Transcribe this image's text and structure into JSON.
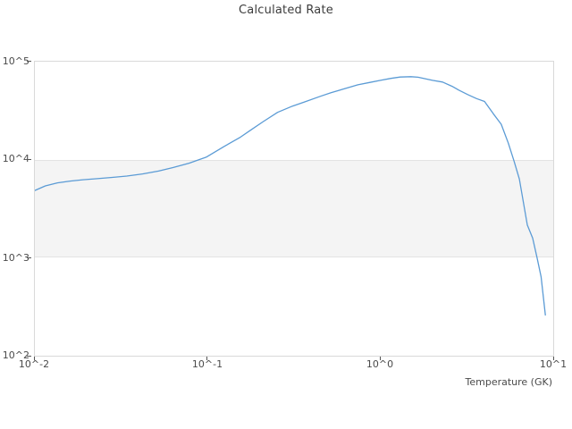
{
  "page": {
    "title": "Calculated Rate"
  },
  "axes": {
    "x_label": "Temperature (GK)",
    "x_ticks": [
      "10^-2",
      "10^-1",
      "10^0",
      "10^1"
    ],
    "y_ticks": [
      "10^5",
      "10^4",
      "10^3",
      "10^2"
    ]
  },
  "colors": {
    "line": "#5b9bd5",
    "band": "#f4f4f4",
    "band_edge": "#e3e3e3",
    "plot_border": "#d9d9d9",
    "text": "#4a4a4a"
  },
  "chart_data": {
    "type": "line",
    "title": "Calculated Rate",
    "xlabel": "Temperature (GK)",
    "ylabel": "",
    "x_scale": "log",
    "y_scale": "log",
    "xlim": [
      0.01,
      10
    ],
    "ylim": [
      100,
      100000
    ],
    "x_tick_values": [
      0.01,
      0.1,
      1,
      10
    ],
    "y_tick_values": [
      100000,
      10000,
      1000,
      100
    ],
    "band_y": [
      1000,
      10000
    ],
    "grid": false,
    "legend": "none",
    "series": [
      {
        "name": "Calculated Rate",
        "color": "#5b9bd5",
        "x": [
          0.01,
          0.0115,
          0.0135,
          0.016,
          0.019,
          0.023,
          0.028,
          0.034,
          0.042,
          0.052,
          0.063,
          0.078,
          0.098,
          0.125,
          0.155,
          0.177,
          0.21,
          0.254,
          0.31,
          0.363,
          0.45,
          0.517,
          0.62,
          0.74,
          0.87,
          1.0,
          1.15,
          1.3,
          1.5,
          1.65,
          2.0,
          2.29,
          2.6,
          2.84,
          3.2,
          3.6,
          4.0,
          4.5,
          5.0,
          5.5,
          5.93,
          6.37,
          7.08,
          7.6,
          8.07,
          8.5,
          9.0
        ],
        "y": [
          4850,
          5400,
          5800,
          6050,
          6250,
          6400,
          6600,
          6800,
          7150,
          7650,
          8300,
          9200,
          10600,
          13700,
          17000,
          20000,
          24500,
          30400,
          35200,
          38800,
          44400,
          48200,
          53000,
          58100,
          61500,
          64500,
          67500,
          69700,
          70300,
          69400,
          64500,
          61900,
          56000,
          51300,
          46200,
          42000,
          39300,
          29400,
          23000,
          14700,
          9700,
          6350,
          2160,
          1580,
          990,
          640,
          260
        ]
      }
    ]
  }
}
